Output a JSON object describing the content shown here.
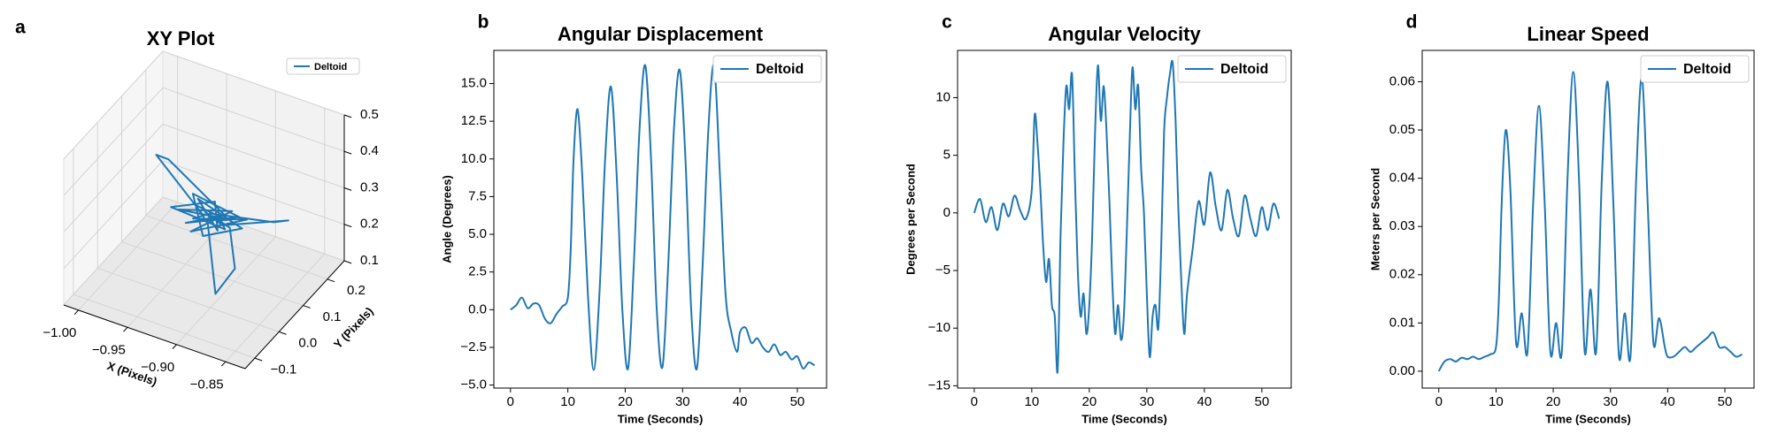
{
  "chart_data": [
    {
      "type": "line3d",
      "letter": "a",
      "title": "XY Plot",
      "xlabel": "X (Pixels)",
      "ylabel": "Y (Pixels)",
      "xlim": [
        -1.015,
        -0.83
      ],
      "ylim": [
        -0.14,
        0.27
      ],
      "zlim": [
        0.1,
        0.5
      ],
      "xticks": [
        {
          "value": -1,
          "label": "−1.00"
        },
        {
          "value": -0.95,
          "label": "−0.95"
        },
        {
          "value": -0.9,
          "label": "−0.90"
        },
        {
          "value": -0.85,
          "label": "−0.85"
        }
      ],
      "yticks": [
        {
          "value": -0.1,
          "label": "−0.1"
        },
        {
          "value": 0,
          "label": "0.0"
        },
        {
          "value": 0.1,
          "label": "0.1"
        },
        {
          "value": 0.2,
          "label": "0.2"
        }
      ],
      "zticks": [
        0.1,
        0.2,
        0.3,
        0.4,
        0.5
      ],
      "legend": "upper right",
      "series": [
        {
          "name": "Deltoid",
          "color": "#1f77b4",
          "x": [
            -0.92,
            -0.97,
            -0.96,
            -0.9,
            -0.93,
            -0.89,
            -0.94,
            -0.91,
            -0.88,
            -0.93,
            -0.9,
            -0.92,
            -0.95,
            -0.89,
            -0.91,
            -0.94,
            -0.9,
            -0.92,
            -0.88,
            -0.93,
            -0.91,
            -0.86,
            -0.85,
            -0.9,
            -0.92,
            -0.89,
            -0.87,
            -0.88,
            -0.91,
            -0.93,
            -0.9,
            -0.92
          ],
          "y": [
            0.05,
            0.06,
            0.07,
            0.06,
            0.02,
            0.08,
            0.09,
            0.01,
            0.05,
            0.07,
            0.03,
            0.1,
            0.04,
            0.02,
            0.08,
            0.03,
            0.09,
            0.0,
            0.07,
            0.05,
            0.04,
            0.1,
            0.12,
            0.05,
            0.06,
            0.04,
            -0.02,
            -0.06,
            0.03,
            0.06,
            0.07,
            0.03
          ],
          "z": [
            0.3,
            0.41,
            0.4,
            0.31,
            0.29,
            0.3,
            0.31,
            0.28,
            0.3,
            0.32,
            0.29,
            0.3,
            0.3,
            0.31,
            0.28,
            0.31,
            0.3,
            0.29,
            0.31,
            0.28,
            0.32,
            0.3,
            0.3,
            0.29,
            0.3,
            0.3,
            0.25,
            0.2,
            0.3,
            0.31,
            0.29,
            0.3
          ]
        }
      ]
    },
    {
      "type": "line",
      "letter": "b",
      "title": "Angular Displacement",
      "xlabel": "Time (Seconds)",
      "ylabel": "Angle (Degrees)",
      "xlim": [
        -2.9,
        55.1
      ],
      "ylim": [
        -5.2,
        17.2
      ],
      "xticks": [
        0,
        10,
        20,
        30,
        40,
        50
      ],
      "yticks": [
        {
          "value": -5,
          "label": "−5.0"
        },
        {
          "value": -2.5,
          "label": "−2.5"
        },
        {
          "value": 0,
          "label": "0.0"
        },
        {
          "value": 2.5,
          "label": "2.5"
        },
        {
          "value": 5,
          "label": "5.0"
        },
        {
          "value": 7.5,
          "label": "7.5"
        },
        {
          "value": 10,
          "label": "10.0"
        },
        {
          "value": 12.5,
          "label": "12.5"
        },
        {
          "value": 15,
          "label": "15.0"
        }
      ],
      "legend": "upper right",
      "x": [
        0,
        1,
        2,
        3,
        4,
        5,
        6,
        7,
        8,
        9,
        10,
        10.5,
        11,
        11.7,
        12.5,
        13.5,
        14.5,
        15.5,
        16.5,
        17.5,
        18.5,
        19.5,
        20.5,
        21.5,
        22.5,
        23.5,
        24.5,
        25.5,
        26.5,
        27.5,
        28.5,
        29.5,
        30.5,
        31.5,
        32.5,
        33.5,
        34.5,
        35.5,
        36.5,
        37.5,
        38.5,
        39.5,
        40,
        41,
        42,
        43,
        44,
        45,
        46,
        47,
        48,
        49,
        50,
        51,
        52,
        53
      ],
      "series": [
        {
          "name": "Deltoid",
          "color": "#1f77b4",
          "values": [
            0,
            0.3,
            0.8,
            0.1,
            0.4,
            0.3,
            -0.6,
            -0.9,
            -0.3,
            0.2,
            0.8,
            4,
            10,
            13.3,
            9,
            1,
            -4,
            1,
            10,
            14.8,
            9,
            0,
            -3.9,
            3,
            12,
            16.2,
            10,
            0,
            -3.8,
            3,
            12,
            15.9,
            10,
            0,
            -3.9,
            3,
            12,
            16.2,
            9,
            1,
            -1.5,
            -2.8,
            -1.5,
            -1.2,
            -2.2,
            -1.9,
            -2.5,
            -2.8,
            -2.3,
            -3,
            -2.8,
            -3.3,
            -3.1,
            -3.9,
            -3.5,
            -3.7
          ]
        }
      ]
    },
    {
      "type": "line",
      "letter": "c",
      "title": "Angular Velocity",
      "xlabel": "Time (Seconds)",
      "ylabel": "Degrees per Second",
      "xlim": [
        -2.9,
        55.1
      ],
      "ylim": [
        -15.2,
        14.1
      ],
      "xticks": [
        0,
        10,
        20,
        30,
        40,
        50
      ],
      "yticks": [
        {
          "value": -15,
          "label": "−15"
        },
        {
          "value": -10,
          "label": "−10"
        },
        {
          "value": -5,
          "label": "−5"
        },
        0,
        5,
        10
      ],
      "legend": "upper right",
      "x": [
        0,
        1,
        2,
        3,
        4,
        5,
        6,
        7,
        8,
        9,
        10,
        10.5,
        11,
        11.5,
        12,
        12.5,
        13,
        13.5,
        14,
        14.5,
        15,
        15.5,
        16,
        16.5,
        17,
        17.5,
        18,
        18.5,
        19,
        19.5,
        20,
        20.5,
        21,
        21.5,
        22,
        22.5,
        23,
        23.5,
        24,
        24.5,
        25,
        25.5,
        26,
        26.5,
        27,
        27.5,
        28,
        28.5,
        29,
        29.5,
        30,
        30.5,
        31,
        31.5,
        32,
        32.5,
        33,
        33.5,
        34,
        34.5,
        35,
        35.5,
        36,
        36.5,
        37,
        38,
        39,
        40,
        41,
        42,
        43,
        44,
        45,
        46,
        47,
        48,
        49,
        50,
        51,
        52,
        53
      ],
      "series": [
        {
          "name": "Deltoid",
          "color": "#1f77b4",
          "values": [
            0,
            1.2,
            -0.8,
            0.5,
            -1.5,
            0.8,
            -0.3,
            1.5,
            0.2,
            -0.5,
            2,
            8.5,
            6,
            2,
            -3,
            -6,
            -4,
            -8,
            -9,
            -13.7,
            -2,
            6,
            11,
            9,
            12,
            3,
            -5,
            -9,
            -7,
            -10.5,
            -8,
            -2,
            7,
            12.8,
            8,
            11,
            7,
            1,
            -6,
            -10.5,
            -8,
            -11,
            -9,
            -2,
            6,
            12.6,
            9,
            11,
            4,
            0,
            -7,
            -12.5,
            -9,
            -8,
            -10,
            -3,
            7,
            10,
            12,
            13,
            8,
            0,
            -6,
            -10.5,
            -7,
            -3,
            1,
            -1,
            3.5,
            0.5,
            -1.5,
            2,
            -0.5,
            -2,
            1.5,
            -0.5,
            -2,
            0.5,
            -1.5,
            0.8,
            -0.5
          ]
        }
      ]
    },
    {
      "type": "line",
      "letter": "d",
      "title": "Linear Speed",
      "xlabel": "Time (Seconds)",
      "ylabel": "Meters per Second",
      "xlim": [
        -2.9,
        55.1
      ],
      "ylim": [
        -0.0035,
        0.0665
      ],
      "xticks": [
        0,
        10,
        20,
        30,
        40,
        50
      ],
      "yticks": [
        {
          "value": 0,
          "label": "0.00"
        },
        {
          "value": 0.01,
          "label": "0.01"
        },
        {
          "value": 0.02,
          "label": "0.02"
        },
        {
          "value": 0.03,
          "label": "0.03"
        },
        {
          "value": 0.04,
          "label": "0.04"
        },
        {
          "value": 0.05,
          "label": "0.05"
        },
        {
          "value": 0.06,
          "label": "0.06"
        }
      ],
      "legend": "upper right",
      "x": [
        0,
        1,
        2,
        3,
        4,
        5,
        6,
        7,
        8,
        9,
        10,
        10.5,
        11,
        11.7,
        12.5,
        13.5,
        14.5,
        15.5,
        16.5,
        17.5,
        18.5,
        19.5,
        20.5,
        21.5,
        22.5,
        23.5,
        24.5,
        25.5,
        26.5,
        27.5,
        28.5,
        29.5,
        30.5,
        31.5,
        32.5,
        33.5,
        34.5,
        35.5,
        36.5,
        37.5,
        38.5,
        39.5,
        40,
        41,
        42,
        43,
        44,
        45,
        46,
        47,
        48,
        49,
        50,
        51,
        52,
        53
      ],
      "series": [
        {
          "name": "Deltoid",
          "color": "#1f77b4",
          "values": [
            0,
            0.002,
            0.0025,
            0.002,
            0.0028,
            0.0025,
            0.003,
            0.0025,
            0.003,
            0.0035,
            0.005,
            0.015,
            0.035,
            0.05,
            0.038,
            0.006,
            0.012,
            0.004,
            0.035,
            0.055,
            0.035,
            0.004,
            0.01,
            0.004,
            0.04,
            0.062,
            0.04,
            0.004,
            0.017,
            0.004,
            0.04,
            0.06,
            0.035,
            0.003,
            0.012,
            0.003,
            0.04,
            0.061,
            0.035,
            0.006,
            0.011,
            0.005,
            0.003,
            0.003,
            0.004,
            0.005,
            0.004,
            0.005,
            0.006,
            0.007,
            0.008,
            0.005,
            0.005,
            0.004,
            0.003,
            0.0035
          ]
        }
      ]
    }
  ]
}
